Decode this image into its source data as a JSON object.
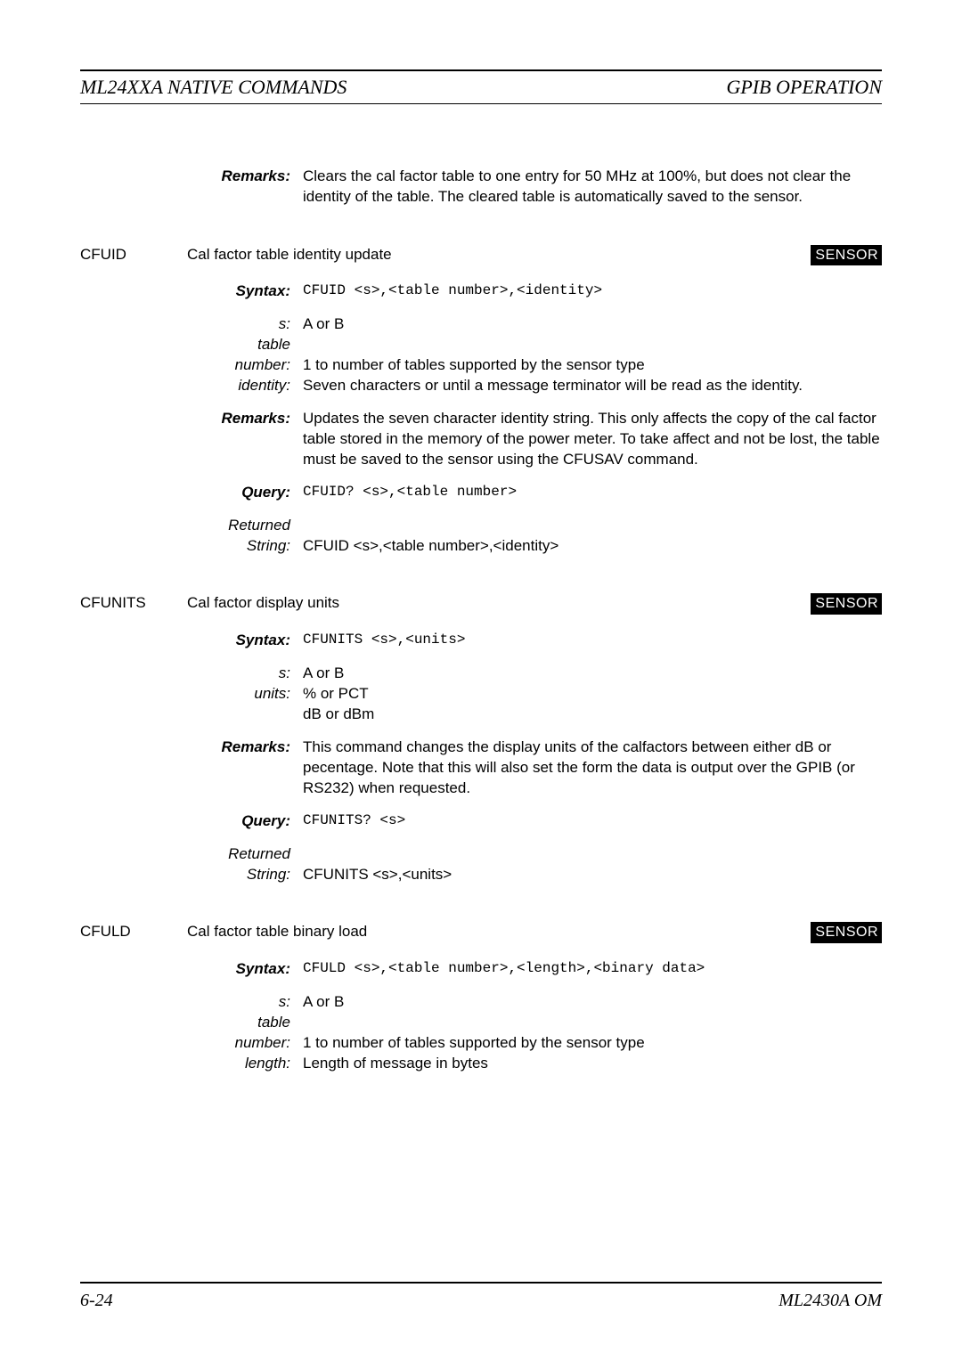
{
  "header": {
    "left": "ML24XXA NATIVE COMMANDS",
    "right": "GPIB OPERATION"
  },
  "intro": {
    "label": "Remarks:",
    "text": "Clears the cal factor table to one entry for 50 MHz at 100%, but does not clear the identity of the table. The cleared table is automatically saved to the sensor."
  },
  "cfuid": {
    "name": "CFUID",
    "title": "Cal factor table identity update",
    "badge": "SENSOR",
    "syntax_label": "Syntax:",
    "syntax": "CFUID <s>,<table number>,<identity>",
    "params": [
      {
        "label": "s:",
        "text": "A or B"
      },
      {
        "label": "table number:",
        "text": "1 to number of tables supported by the sensor type"
      },
      {
        "label": "identity:",
        "text": "Seven characters or until a message terminator will be read as the identity."
      }
    ],
    "remarks_label": "Remarks:",
    "remarks": " Updates the seven character identity string. This only affects the copy of the cal factor table stored in the memory of the power meter. To take affect and not be lost, the table must be saved to the sensor using the CFUSAV command.",
    "query_label": "Query:",
    "query": "CFUID? <s>,<table number>",
    "returned_label1": "Returned",
    "returned_label2": "String:",
    "returned": "CFUID <s>,<table number>,<identity>"
  },
  "cfunits": {
    "name": "CFUNITS",
    "title": "Cal factor display units",
    "badge": "SENSOR",
    "syntax_label": "Syntax:",
    "syntax": "CFUNITS <s>,<units>",
    "params": [
      {
        "label": "s:",
        "text": "A or B"
      },
      {
        "label": "units:",
        "text1": "% or PCT",
        "text2": "dB or dBm"
      }
    ],
    "remarks_label": "Remarks:",
    "remarks": "This command changes the display units of the calfactors between either dB or pecentage. Note that this will also set the form the data is output over the GPIB (or RS232) when requested.",
    "query_label": "Query:",
    "query": "CFUNITS? <s>",
    "returned_label1": "Returned",
    "returned_label2": "String:",
    "returned": "CFUNITS <s>,<units>"
  },
  "cfuld": {
    "name": "CFULD",
    "title": "Cal factor table binary load",
    "badge": "SENSOR",
    "syntax_label": "Syntax:",
    "syntax": "CFULD <s>,<table number>,<length>,<binary data>",
    "params": [
      {
        "label": "s:",
        "text": "A or B"
      },
      {
        "label": "table number:",
        "text": "1 to number of tables supported by the sensor type"
      },
      {
        "label": "length:",
        "text": "Length of message in bytes"
      }
    ]
  },
  "footer": {
    "left": "6-24",
    "right": "ML2430A OM"
  }
}
